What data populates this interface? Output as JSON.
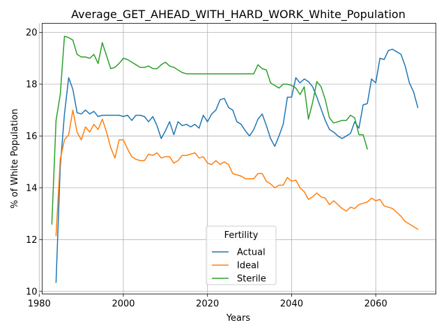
{
  "chart_data": {
    "type": "line",
    "title": "Average_GET_AHEAD_WITH_HARD_WORK_White_Population",
    "xlabel": "Years",
    "ylabel": "% of White Population",
    "xlim": [
      1980.7,
      2074.3
    ],
    "ylim": [
      9.9,
      20.35
    ],
    "xticks": [
      1980,
      2000,
      2020,
      2040,
      2060
    ],
    "yticks": [
      10,
      12,
      14,
      16,
      18,
      20
    ],
    "grid": true,
    "legend": {
      "title": "Fertility",
      "placement": "lower center"
    },
    "series": [
      {
        "name": "Actual",
        "color": "#1f77b4",
        "x": [
          1984,
          1985,
          1986,
          1987,
          1988,
          1989,
          1990,
          1991,
          1992,
          1993,
          1994,
          1995,
          1996,
          1997,
          1998,
          1999,
          2000,
          2001,
          2002,
          2003,
          2004,
          2005,
          2006,
          2007,
          2008,
          2009,
          2010,
          2011,
          2012,
          2013,
          2014,
          2015,
          2016,
          2017,
          2018,
          2019,
          2020,
          2021,
          2022,
          2023,
          2024,
          2025,
          2026,
          2027,
          2028,
          2029,
          2030,
          2031,
          2032,
          2033,
          2034,
          2035,
          2036,
          2037,
          2038,
          2039,
          2040,
          2041,
          2042,
          2043,
          2044,
          2045,
          2046,
          2047,
          2048,
          2049,
          2050,
          2051,
          2052,
          2053,
          2054,
          2055,
          2056,
          2057,
          2058,
          2059,
          2060,
          2061,
          2062,
          2063,
          2064,
          2065,
          2066,
          2067,
          2068,
          2069,
          2070
        ],
        "values": [
          10.35,
          14.8,
          16.85,
          18.25,
          17.8,
          16.9,
          16.85,
          17.0,
          16.85,
          16.95,
          16.75,
          16.8,
          16.8,
          16.8,
          16.8,
          16.8,
          16.75,
          16.8,
          16.6,
          16.8,
          16.8,
          16.75,
          16.55,
          16.75,
          16.4,
          15.9,
          16.2,
          16.55,
          16.05,
          16.55,
          16.4,
          16.45,
          16.35,
          16.45,
          16.3,
          16.8,
          16.55,
          16.85,
          17.0,
          17.4,
          17.45,
          17.1,
          17.0,
          16.55,
          16.45,
          16.2,
          16.0,
          16.25,
          16.65,
          16.85,
          16.4,
          15.9,
          15.6,
          16.0,
          16.45,
          17.5,
          17.5,
          18.25,
          18.05,
          18.2,
          18.1,
          17.9,
          17.5,
          17.05,
          16.6,
          16.25,
          16.15,
          16.0,
          15.9,
          16.0,
          16.1,
          16.55,
          16.3,
          17.2,
          17.25,
          18.2,
          18.05,
          19.0,
          18.95,
          19.3,
          19.35,
          19.25,
          19.15,
          18.7,
          18.05,
          17.7,
          17.1
        ]
      },
      {
        "name": "Ideal",
        "color": "#ff7f0e",
        "x": [
          1984,
          1985,
          1986,
          1987,
          1988,
          1989,
          1990,
          1991,
          1992,
          1993,
          1994,
          1995,
          1996,
          1997,
          1998,
          1999,
          2000,
          2001,
          2002,
          2003,
          2004,
          2005,
          2006,
          2007,
          2008,
          2009,
          2010,
          2011,
          2012,
          2013,
          2014,
          2015,
          2016,
          2017,
          2018,
          2019,
          2020,
          2021,
          2022,
          2023,
          2024,
          2025,
          2026,
          2027,
          2028,
          2029,
          2030,
          2031,
          2032,
          2033,
          2034,
          2035,
          2036,
          2037,
          2038,
          2039,
          2040,
          2041,
          2042,
          2043,
          2044,
          2045,
          2046,
          2047,
          2048,
          2049,
          2050,
          2051,
          2052,
          2053,
          2054,
          2055,
          2056,
          2057,
          2058,
          2059,
          2060,
          2061,
          2062,
          2063,
          2064,
          2065,
          2066,
          2067,
          2068,
          2069,
          2070
        ],
        "values": [
          12.15,
          15.1,
          15.85,
          16.05,
          17.0,
          16.15,
          15.85,
          16.35,
          16.15,
          16.45,
          16.25,
          16.65,
          16.15,
          15.55,
          15.15,
          15.85,
          15.85,
          15.5,
          15.2,
          15.1,
          15.05,
          15.05,
          15.3,
          15.25,
          15.35,
          15.15,
          15.2,
          15.2,
          14.95,
          15.05,
          15.25,
          15.25,
          15.3,
          15.35,
          15.15,
          15.2,
          14.95,
          14.9,
          15.05,
          14.9,
          15.0,
          14.9,
          14.55,
          14.5,
          14.45,
          14.35,
          14.35,
          14.35,
          14.55,
          14.55,
          14.25,
          14.15,
          14.0,
          14.1,
          14.1,
          14.4,
          14.25,
          14.3,
          14.0,
          13.85,
          13.55,
          13.65,
          13.8,
          13.65,
          13.6,
          13.35,
          13.5,
          13.35,
          13.2,
          13.1,
          13.25,
          13.2,
          13.35,
          13.4,
          13.45,
          13.6,
          13.5,
          13.55,
          13.3,
          13.25,
          13.2,
          13.05,
          12.9,
          12.7,
          12.6,
          12.5,
          12.4
        ]
      },
      {
        "name": "Sterile",
        "color": "#2ca02c",
        "x": [
          1983,
          1984,
          1985,
          1986,
          1987,
          1988,
          1989,
          1990,
          1991,
          1992,
          1993,
          1994,
          1995,
          1996,
          1997,
          1998,
          1999,
          2000,
          2001,
          2002,
          2003,
          2004,
          2005,
          2006,
          2007,
          2008,
          2009,
          2010,
          2011,
          2012,
          2013,
          2014,
          2015,
          2016,
          2017,
          2018,
          2019,
          2020,
          2021,
          2022,
          2023,
          2024,
          2025,
          2026,
          2027,
          2028,
          2029,
          2030,
          2031,
          2032,
          2033,
          2034,
          2035,
          2036,
          2037,
          2038,
          2039,
          2040,
          2041,
          2042,
          2043,
          2044,
          2045,
          2046,
          2047,
          2048,
          2049,
          2050,
          2051,
          2052,
          2053,
          2054,
          2055,
          2056,
          2057,
          2058
        ],
        "values": [
          12.6,
          16.6,
          17.6,
          19.85,
          19.8,
          19.7,
          19.15,
          19.05,
          19.05,
          19.0,
          19.15,
          18.8,
          19.6,
          19.1,
          18.6,
          18.65,
          18.8,
          19.0,
          18.95,
          18.85,
          18.75,
          18.65,
          18.65,
          18.7,
          18.6,
          18.6,
          18.75,
          18.85,
          18.7,
          18.65,
          18.55,
          18.45,
          18.4,
          18.4,
          18.4,
          18.4,
          18.4,
          18.4,
          18.4,
          18.4,
          18.4,
          18.4,
          18.4,
          18.4,
          18.4,
          18.4,
          18.4,
          18.4,
          18.4,
          18.75,
          18.6,
          18.55,
          18.05,
          17.95,
          17.85,
          18.0,
          18.0,
          17.95,
          17.85,
          17.6,
          17.9,
          16.65,
          17.3,
          18.1,
          17.9,
          17.4,
          16.7,
          16.5,
          16.55,
          16.6,
          16.6,
          16.8,
          16.7,
          16.05,
          16.05,
          15.5
        ]
      }
    ]
  }
}
